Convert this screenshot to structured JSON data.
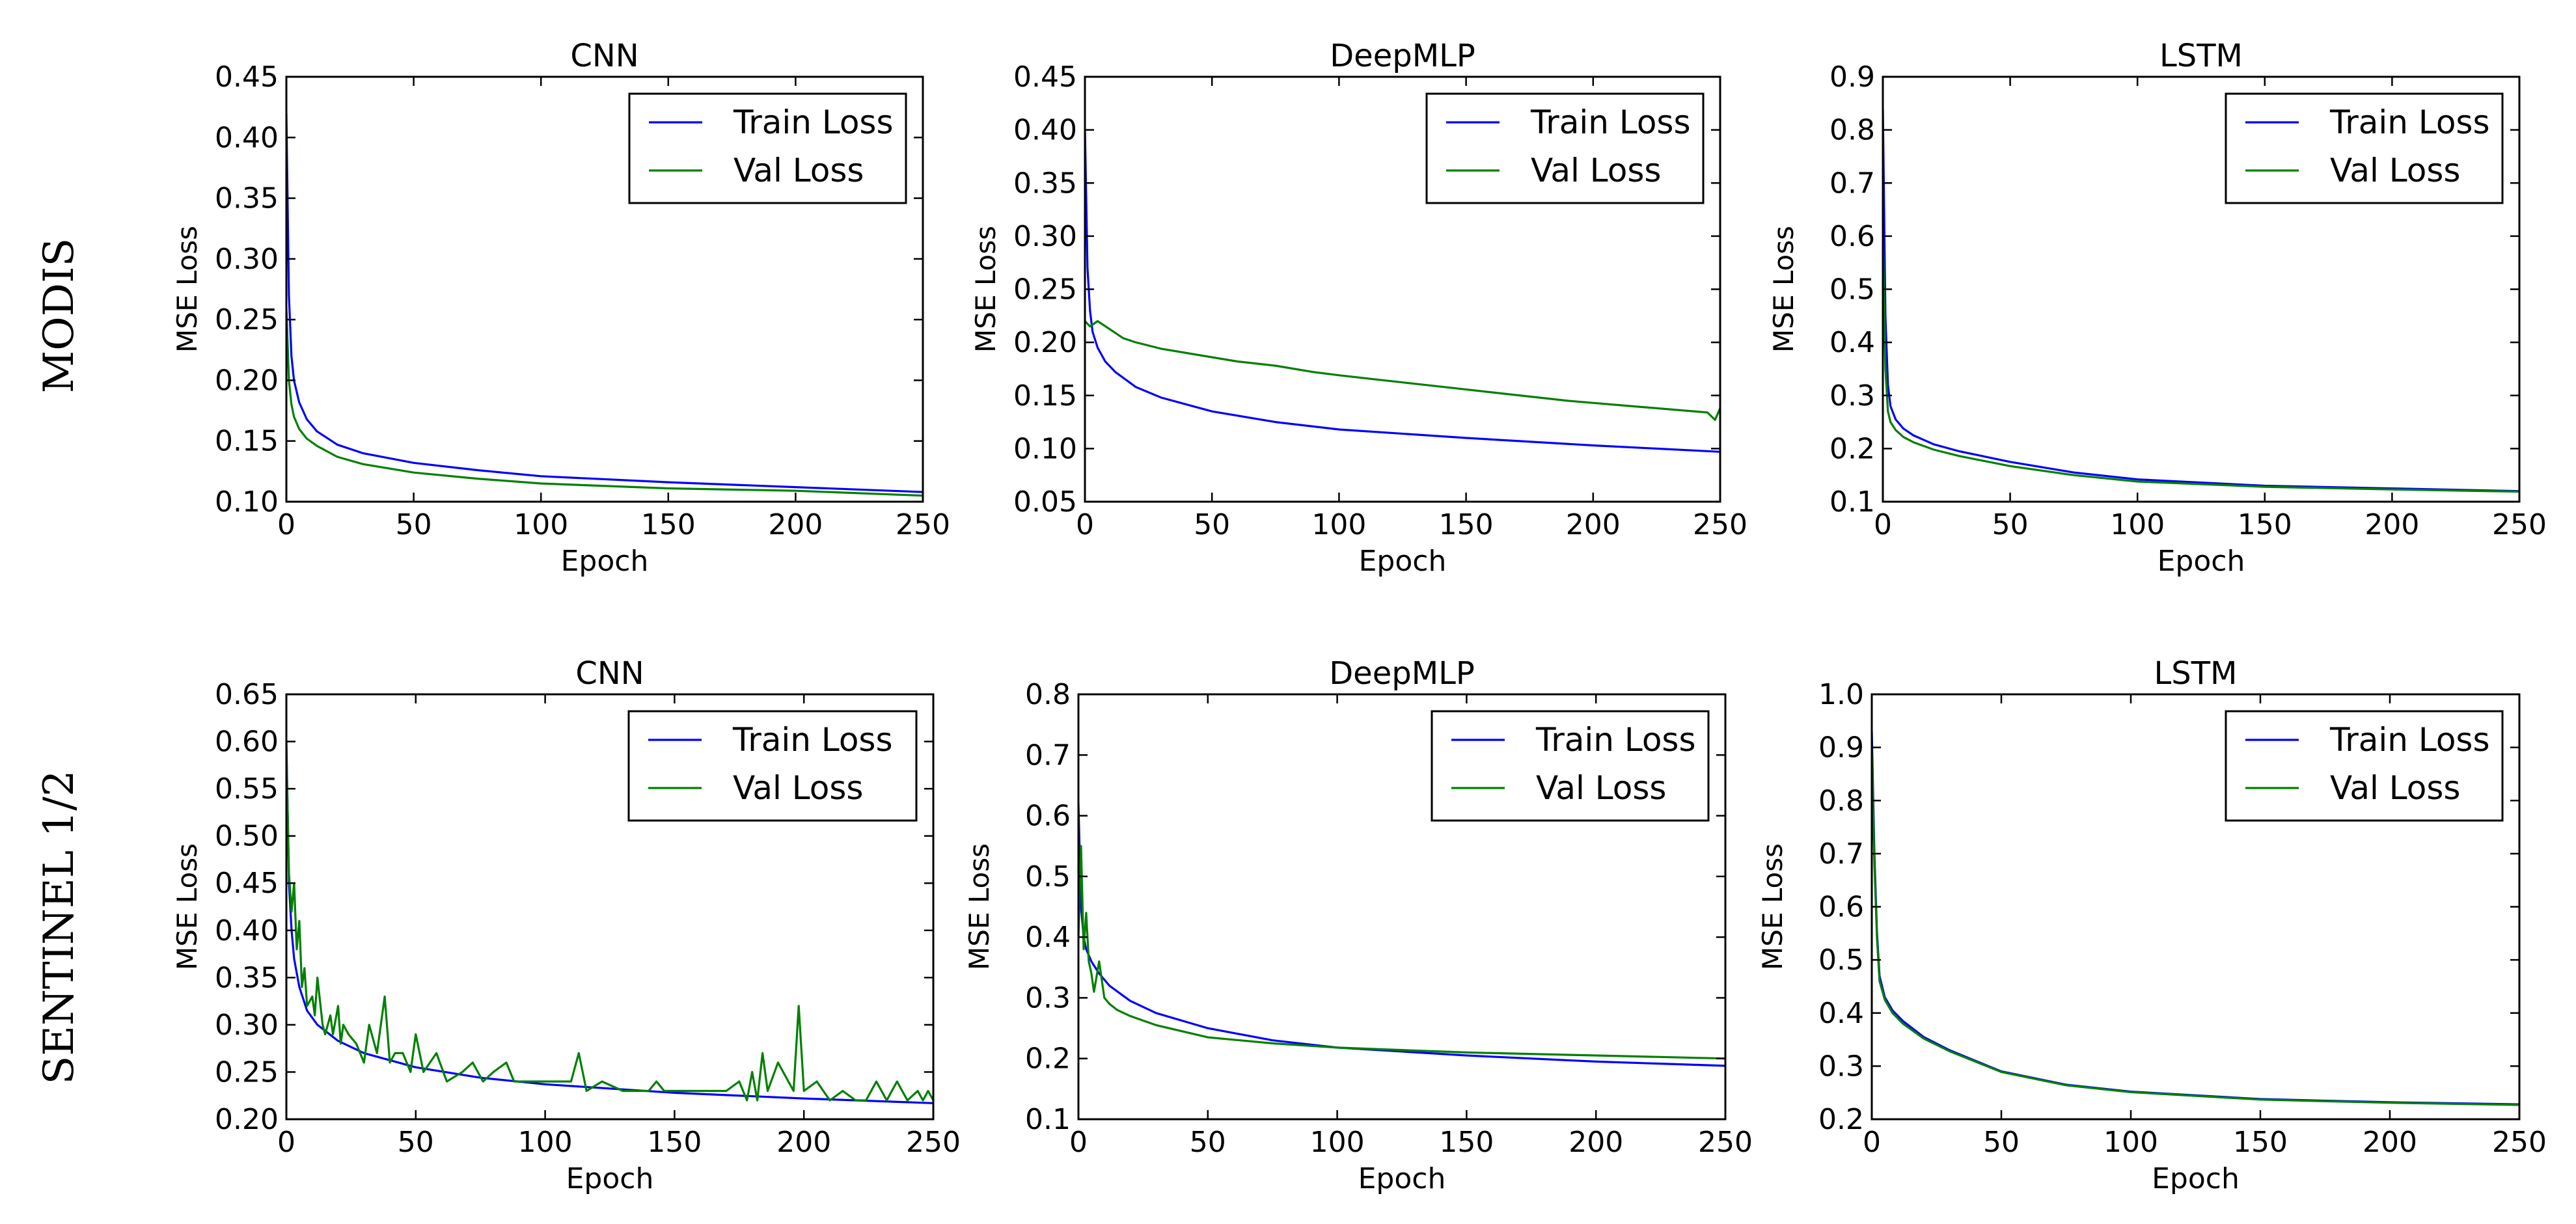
{
  "figure": {
    "row_labels": [
      "MODIS",
      "SENTINEL 1/2"
    ]
  },
  "colors": {
    "train": "#0000ff",
    "val": "#008000"
  },
  "chart_data": [
    {
      "type": "line",
      "title": "CNN",
      "xlabel": "Epoch",
      "ylabel": "MSE Loss",
      "xlim": [
        0,
        250
      ],
      "ylim": [
        0.1,
        0.45
      ],
      "xticks": [
        "0",
        "50",
        "100",
        "150",
        "200",
        "250"
      ],
      "yticks": [
        "0.10",
        "0.15",
        "0.20",
        "0.25",
        "0.30",
        "0.35",
        "0.40",
        "0.45"
      ],
      "legend": {
        "position": "top-right"
      },
      "series": [
        {
          "name": "Train Loss",
          "x": [
            0,
            1,
            2,
            3,
            5,
            8,
            12,
            20,
            30,
            50,
            75,
            100,
            150,
            200,
            250
          ],
          "y": [
            0.42,
            0.27,
            0.22,
            0.2,
            0.182,
            0.168,
            0.158,
            0.147,
            0.14,
            0.132,
            0.126,
            0.121,
            0.116,
            0.112,
            0.108
          ]
        },
        {
          "name": "Val Loss",
          "x": [
            0,
            1,
            2,
            3,
            5,
            8,
            12,
            20,
            30,
            50,
            75,
            100,
            150,
            200,
            250
          ],
          "y": [
            0.26,
            0.2,
            0.18,
            0.17,
            0.16,
            0.152,
            0.146,
            0.137,
            0.131,
            0.124,
            0.119,
            0.115,
            0.111,
            0.109,
            0.105
          ]
        }
      ]
    },
    {
      "type": "line",
      "title": "DeepMLP",
      "xlabel": "Epoch",
      "ylabel": "MSE Loss",
      "xlim": [
        0,
        250
      ],
      "ylim": [
        0.05,
        0.45
      ],
      "xticks": [
        "0",
        "50",
        "100",
        "150",
        "200",
        "250"
      ],
      "yticks": [
        "0.05",
        "0.10",
        "0.15",
        "0.20",
        "0.25",
        "0.30",
        "0.35",
        "0.40",
        "0.45"
      ],
      "legend": {
        "position": "top-right"
      },
      "series": [
        {
          "name": "Train Loss",
          "x": [
            0,
            1,
            2,
            3,
            5,
            8,
            12,
            20,
            30,
            50,
            75,
            100,
            150,
            200,
            250
          ],
          "y": [
            0.4,
            0.27,
            0.23,
            0.21,
            0.195,
            0.182,
            0.172,
            0.158,
            0.148,
            0.135,
            0.125,
            0.118,
            0.11,
            0.103,
            0.097
          ]
        },
        {
          "name": "Val Loss",
          "x": [
            0,
            2,
            5,
            10,
            15,
            20,
            30,
            40,
            50,
            60,
            75,
            90,
            100,
            115,
            130,
            145,
            160,
            175,
            190,
            200,
            215,
            230,
            245,
            248,
            250
          ],
          "y": [
            0.22,
            0.215,
            0.22,
            0.212,
            0.204,
            0.2,
            0.194,
            0.19,
            0.186,
            0.182,
            0.178,
            0.172,
            0.169,
            0.165,
            0.161,
            0.157,
            0.153,
            0.149,
            0.145,
            0.143,
            0.14,
            0.137,
            0.134,
            0.127,
            0.138
          ]
        }
      ]
    },
    {
      "type": "line",
      "title": "LSTM",
      "xlabel": "Epoch",
      "ylabel": "MSE Loss",
      "xlim": [
        0,
        250
      ],
      "ylim": [
        0.1,
        0.9
      ],
      "xticks": [
        "0",
        "50",
        "100",
        "150",
        "200",
        "250"
      ],
      "yticks": [
        "0.1",
        "0.2",
        "0.3",
        "0.4",
        "0.5",
        "0.6",
        "0.7",
        "0.8",
        "0.9"
      ],
      "legend": {
        "position": "top-right"
      },
      "series": [
        {
          "name": "Train Loss",
          "x": [
            0,
            1,
            2,
            3,
            5,
            8,
            12,
            20,
            30,
            50,
            75,
            100,
            150,
            200,
            250
          ],
          "y": [
            0.84,
            0.45,
            0.32,
            0.28,
            0.255,
            0.238,
            0.225,
            0.208,
            0.195,
            0.175,
            0.155,
            0.142,
            0.13,
            0.125,
            0.12
          ]
        },
        {
          "name": "Val Loss",
          "x": [
            0,
            1,
            2,
            3,
            5,
            8,
            12,
            20,
            30,
            50,
            75,
            100,
            150,
            200,
            250
          ],
          "y": [
            0.6,
            0.35,
            0.27,
            0.25,
            0.235,
            0.222,
            0.212,
            0.198,
            0.186,
            0.167,
            0.15,
            0.138,
            0.128,
            0.123,
            0.119
          ]
        }
      ]
    },
    {
      "type": "line",
      "title": "CNN",
      "xlabel": "Epoch",
      "ylabel": "MSE Loss",
      "xlim": [
        0,
        250
      ],
      "ylim": [
        0.2,
        0.65
      ],
      "xticks": [
        "0",
        "50",
        "100",
        "150",
        "200",
        "250"
      ],
      "yticks": [
        "0.20",
        "0.25",
        "0.30",
        "0.35",
        "0.40",
        "0.45",
        "0.50",
        "0.55",
        "0.60",
        "0.65"
      ],
      "legend": {
        "position": "top-right"
      },
      "series": [
        {
          "name": "Train Loss",
          "x": [
            0,
            1,
            2,
            3,
            5,
            8,
            12,
            20,
            30,
            50,
            75,
            100,
            150,
            200,
            250
          ],
          "y": [
            0.6,
            0.45,
            0.4,
            0.37,
            0.34,
            0.315,
            0.3,
            0.283,
            0.27,
            0.255,
            0.244,
            0.237,
            0.228,
            0.222,
            0.217
          ]
        },
        {
          "name": "Val Loss",
          "x": [
            0,
            1,
            2,
            3,
            4,
            5,
            6,
            7,
            8,
            10,
            11,
            12,
            14,
            15,
            17,
            18,
            20,
            21,
            22,
            24,
            27,
            30,
            32,
            35,
            38,
            40,
            42,
            45,
            48,
            50,
            53,
            58,
            62,
            68,
            72,
            76,
            80,
            85,
            88,
            92,
            100,
            110,
            113,
            116,
            122,
            130,
            140,
            143,
            146,
            150,
            160,
            170,
            175,
            178,
            180,
            182,
            184,
            186,
            190,
            196,
            198,
            200,
            205,
            210,
            215,
            220,
            224,
            228,
            232,
            236,
            240,
            244,
            246,
            248,
            250
          ],
          "y": [
            0.59,
            0.46,
            0.42,
            0.45,
            0.38,
            0.41,
            0.34,
            0.36,
            0.32,
            0.33,
            0.31,
            0.35,
            0.3,
            0.29,
            0.31,
            0.29,
            0.32,
            0.28,
            0.3,
            0.29,
            0.28,
            0.26,
            0.3,
            0.27,
            0.33,
            0.26,
            0.27,
            0.27,
            0.25,
            0.29,
            0.25,
            0.27,
            0.24,
            0.25,
            0.26,
            0.24,
            0.25,
            0.26,
            0.24,
            0.24,
            0.24,
            0.24,
            0.27,
            0.23,
            0.24,
            0.23,
            0.23,
            0.24,
            0.23,
            0.23,
            0.23,
            0.23,
            0.24,
            0.22,
            0.25,
            0.22,
            0.27,
            0.23,
            0.26,
            0.23,
            0.32,
            0.23,
            0.24,
            0.22,
            0.23,
            0.22,
            0.22,
            0.24,
            0.22,
            0.24,
            0.22,
            0.23,
            0.22,
            0.23,
            0.22
          ]
        }
      ]
    },
    {
      "type": "line",
      "title": "DeepMLP",
      "xlabel": "Epoch",
      "ylabel": "MSE Loss",
      "xlim": [
        0,
        250
      ],
      "ylim": [
        0.1,
        0.8
      ],
      "xticks": [
        "0",
        "50",
        "100",
        "150",
        "200",
        "250"
      ],
      "yticks": [
        "0.1",
        "0.2",
        "0.3",
        "0.4",
        "0.5",
        "0.6",
        "0.7",
        "0.8"
      ],
      "legend": {
        "position": "top-right"
      },
      "series": [
        {
          "name": "Train Loss",
          "x": [
            0,
            1,
            2,
            3,
            5,
            8,
            12,
            20,
            30,
            50,
            75,
            100,
            150,
            200,
            250
          ],
          "y": [
            0.62,
            0.45,
            0.4,
            0.38,
            0.36,
            0.34,
            0.32,
            0.295,
            0.275,
            0.25,
            0.23,
            0.218,
            0.205,
            0.195,
            0.188
          ]
        },
        {
          "name": "Val Loss",
          "x": [
            0,
            1,
            2,
            3,
            4,
            5,
            6,
            8,
            10,
            12,
            15,
            20,
            30,
            50,
            75,
            100,
            150,
            200,
            250
          ],
          "y": [
            0.4,
            0.55,
            0.38,
            0.44,
            0.36,
            0.34,
            0.31,
            0.36,
            0.3,
            0.29,
            0.28,
            0.27,
            0.255,
            0.235,
            0.225,
            0.218,
            0.21,
            0.205,
            0.2
          ]
        }
      ]
    },
    {
      "type": "line",
      "title": "LSTM",
      "xlabel": "Epoch",
      "ylabel": "MSE Loss",
      "xlim": [
        0,
        250
      ],
      "ylim": [
        0.2,
        1.0
      ],
      "xticks": [
        "0",
        "50",
        "100",
        "150",
        "200",
        "250"
      ],
      "yticks": [
        "0.2",
        "0.3",
        "0.4",
        "0.5",
        "0.6",
        "0.7",
        "0.8",
        "0.9",
        "1.0"
      ],
      "legend": {
        "position": "top-right"
      },
      "series": [
        {
          "name": "Train Loss",
          "x": [
            0,
            1,
            2,
            3,
            5,
            8,
            12,
            20,
            30,
            50,
            75,
            100,
            150,
            200,
            250
          ],
          "y": [
            0.93,
            0.7,
            0.55,
            0.47,
            0.43,
            0.405,
            0.385,
            0.355,
            0.33,
            0.29,
            0.265,
            0.252,
            0.238,
            0.232,
            0.228
          ]
        },
        {
          "name": "Val Loss",
          "x": [
            0,
            1,
            2,
            3,
            5,
            8,
            12,
            20,
            30,
            50,
            75,
            100,
            150,
            200,
            250
          ],
          "y": [
            0.9,
            0.68,
            0.54,
            0.46,
            0.425,
            0.4,
            0.38,
            0.352,
            0.328,
            0.289,
            0.264,
            0.251,
            0.237,
            0.231,
            0.227
          ]
        }
      ]
    }
  ]
}
